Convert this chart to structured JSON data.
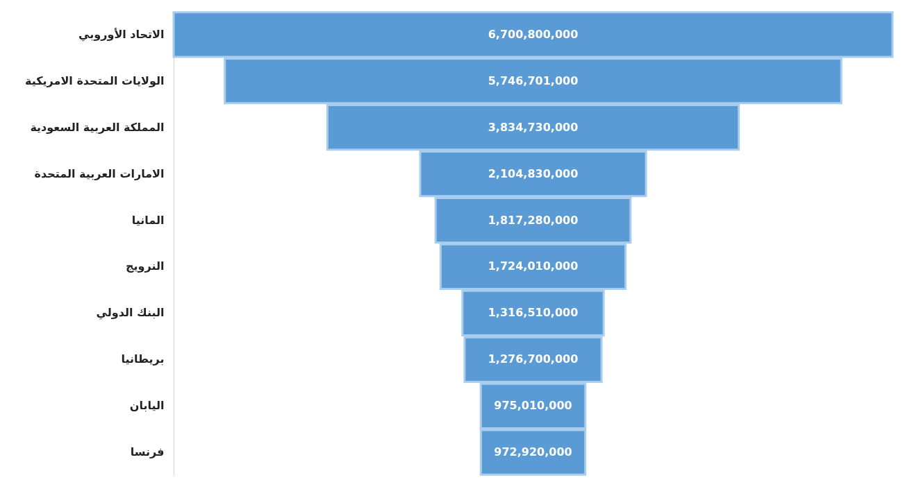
{
  "chart_data": {
    "type": "other",
    "categories": [
      "الاتحاد الأوروبي",
      "الولايات المتحدة الامريكية",
      "المملكة العربية السعودية",
      "الامارات العربية المتحدة",
      "المانيا",
      "النرويج",
      "البنك الدولي",
      "بريطانيا",
      "اليابان",
      "فرنسا"
    ],
    "values": [
      6700800000,
      5746701000,
      3834730000,
      2104830000,
      1817280000,
      1724010000,
      1316510000,
      1276700000,
      975010000,
      972920000
    ],
    "value_labels": [
      "6,700,800,000",
      "5,746,701,000",
      "3,834,730,000",
      "2,104,830,000",
      "1,817,280,000",
      "1,724,010,000",
      "1,316,510,000",
      "1,276,700,000",
      "975,010,000",
      "972,920,000"
    ],
    "color": "#5b9bd5"
  }
}
